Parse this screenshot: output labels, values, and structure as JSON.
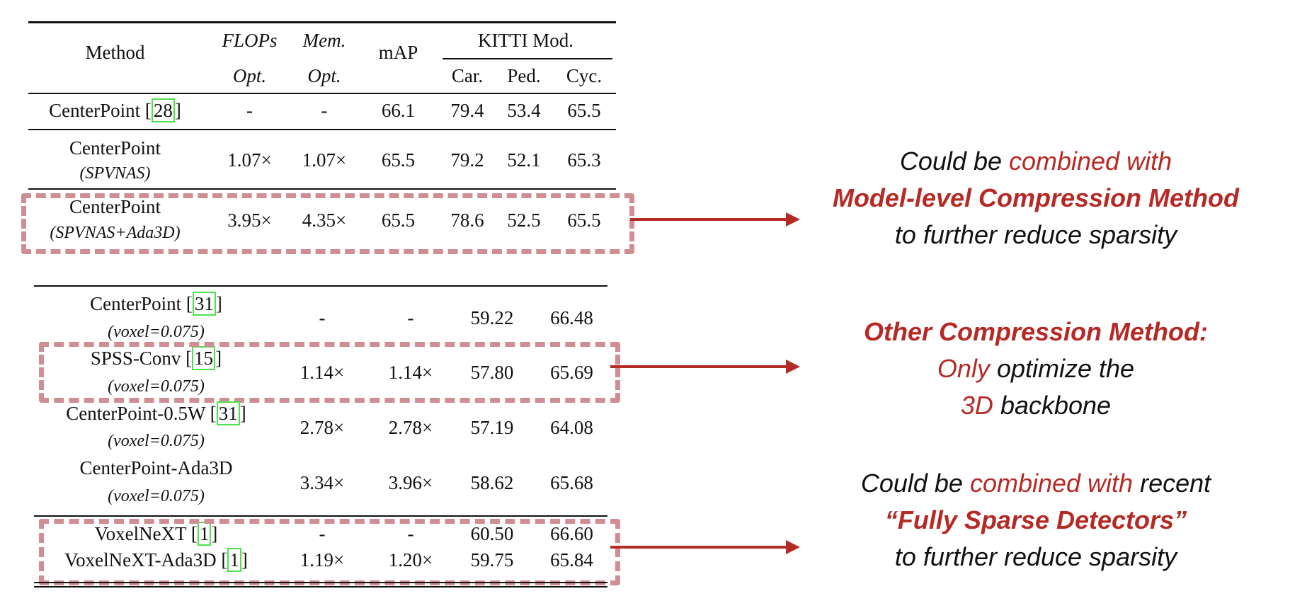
{
  "header": {
    "method": "Method",
    "flops_1": "FLOPs",
    "flops_2": "Opt.",
    "mem_1": "Mem.",
    "mem_2": "Opt.",
    "map": "mAP",
    "kitti": "KITTI Mod.",
    "car": "Car.",
    "ped": "Ped.",
    "cyc": "Cyc."
  },
  "table1": [
    {
      "name": "CenterPoint [",
      "ref": "28",
      "close": "]",
      "sub": "",
      "flops": "-",
      "mem": "-",
      "map": "66.1",
      "car": "79.4",
      "ped": "53.4",
      "cyc": "65.5"
    },
    {
      "name": "CenterPoint",
      "ref": "",
      "close": "",
      "sub": "(SPVNAS)",
      "flops": "1.07×",
      "mem": "1.07×",
      "map": "65.5",
      "car": "79.2",
      "ped": "52.1",
      "cyc": "65.3"
    },
    {
      "name": "CenterPoint",
      "ref": "",
      "close": "",
      "sub": "(SPVNAS+Ada3D)",
      "flops": "3.95×",
      "mem": "4.35×",
      "map": "65.5",
      "car": "78.6",
      "ped": "52.5",
      "cyc": "65.5"
    }
  ],
  "table2": [
    {
      "name": "CenterPoint [",
      "ref": "31",
      "close": "]",
      "sub": "(voxel=0.075)",
      "flops": "-",
      "mem": "-",
      "v1": "59.22",
      "v2": "66.48"
    },
    {
      "name": "SPSS-Conv [",
      "ref": "15",
      "close": "]",
      "sub": "(voxel=0.075)",
      "flops": "1.14×",
      "mem": "1.14×",
      "v1": "57.80",
      "v2": "65.69"
    },
    {
      "name": "CenterPoint-0.5W [",
      "ref": "31",
      "close": "]",
      "sub": "(voxel=0.075)",
      "flops": "2.78×",
      "mem": "2.78×",
      "v1": "57.19",
      "v2": "64.08"
    },
    {
      "name": "CenterPoint-Ada3D",
      "ref": "",
      "close": "",
      "sub": "(voxel=0.075)",
      "flops": "3.34×",
      "mem": "3.96×",
      "v1": "58.62",
      "v2": "65.68"
    },
    {
      "name": "VoxelNeXT [",
      "ref": "1",
      "close": "]",
      "sub": "",
      "flops": "-",
      "mem": "-",
      "v1": "60.50",
      "v2": "66.60"
    },
    {
      "name": "VoxelNeXT-Ada3D [",
      "ref": "1",
      "close": "]",
      "sub": "",
      "flops": "1.19×",
      "mem": "1.20×",
      "v1": "59.75",
      "v2": "65.84"
    }
  ],
  "notes": {
    "n1_a": "Could be ",
    "n1_b": "combined with",
    "n1_c": "Model-level Compression Method",
    "n1_d": "to further reduce sparsity",
    "n2_a": "Other Compression Method:",
    "n2_b": "Only",
    "n2_c": " optimize the",
    "n2_d": "3D",
    "n2_e": " backbone",
    "n3_a": "Could be ",
    "n3_b": "combined with",
    "n3_c": " recent",
    "n3_d": "“Fully Sparse Detectors”",
    "n3_e": "to further reduce sparsity"
  },
  "colors": {
    "accent_red": "#b52a25",
    "highlight_dash": "#d08d93",
    "ref_box": "#4be34b"
  }
}
